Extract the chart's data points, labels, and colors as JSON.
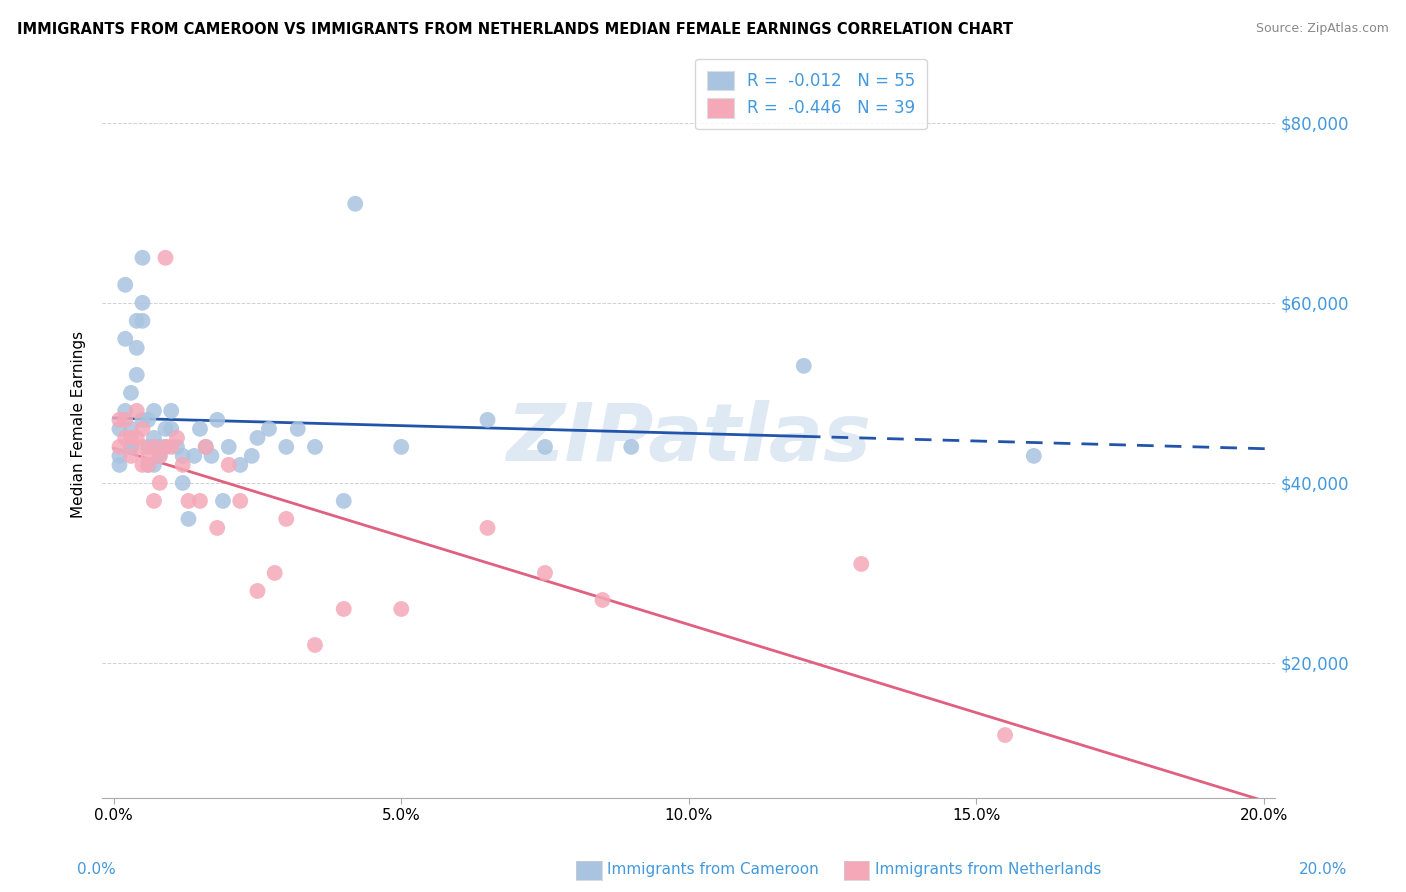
{
  "title": "IMMIGRANTS FROM CAMEROON VS IMMIGRANTS FROM NETHERLANDS MEDIAN FEMALE EARNINGS CORRELATION CHART",
  "source": "Source: ZipAtlas.com",
  "ylabel": "Median Female Earnings",
  "x_ticklabels": [
    "0.0%",
    "5.0%",
    "10.0%",
    "15.0%",
    "20.0%"
  ],
  "x_ticks": [
    0.0,
    0.05,
    0.1,
    0.15,
    0.2
  ],
  "y_ticks": [
    20000,
    40000,
    60000,
    80000
  ],
  "y_ticklabels_right": [
    "$20,000",
    "$40,000",
    "$60,000",
    "$80,000"
  ],
  "xlim": [
    -0.002,
    0.202
  ],
  "ylim": [
    5000,
    88000
  ],
  "color_cameroon": "#a8c4e0",
  "color_netherlands": "#f4a8b8",
  "trendline_cameroon_color": "#2255aa",
  "trendline_netherlands_color": "#e06080",
  "watermark": "ZIPatlas",
  "background_color": "#ffffff",
  "grid_color": "#cccccc",
  "right_axis_color": "#4499dd",
  "cameroon_x": [
    0.001,
    0.001,
    0.001,
    0.002,
    0.002,
    0.002,
    0.003,
    0.003,
    0.003,
    0.003,
    0.004,
    0.004,
    0.004,
    0.005,
    0.005,
    0.005,
    0.005,
    0.006,
    0.006,
    0.006,
    0.007,
    0.007,
    0.007,
    0.008,
    0.008,
    0.009,
    0.009,
    0.01,
    0.01,
    0.011,
    0.012,
    0.012,
    0.013,
    0.014,
    0.015,
    0.016,
    0.017,
    0.018,
    0.019,
    0.02,
    0.022,
    0.024,
    0.025,
    0.027,
    0.03,
    0.032,
    0.035,
    0.04,
    0.042,
    0.05,
    0.065,
    0.075,
    0.09,
    0.12,
    0.16
  ],
  "cameroon_y": [
    43000,
    46000,
    42000,
    56000,
    62000,
    48000,
    44000,
    46000,
    50000,
    44000,
    55000,
    58000,
    52000,
    47000,
    60000,
    65000,
    58000,
    42000,
    44000,
    47000,
    48000,
    45000,
    42000,
    44000,
    43000,
    46000,
    44000,
    46000,
    48000,
    44000,
    40000,
    43000,
    36000,
    43000,
    46000,
    44000,
    43000,
    47000,
    38000,
    44000,
    42000,
    43000,
    45000,
    46000,
    44000,
    46000,
    44000,
    38000,
    71000,
    44000,
    47000,
    44000,
    44000,
    53000,
    43000
  ],
  "netherlands_x": [
    0.001,
    0.001,
    0.002,
    0.002,
    0.003,
    0.003,
    0.004,
    0.004,
    0.005,
    0.005,
    0.005,
    0.006,
    0.006,
    0.007,
    0.007,
    0.008,
    0.008,
    0.009,
    0.009,
    0.01,
    0.011,
    0.012,
    0.013,
    0.015,
    0.016,
    0.018,
    0.02,
    0.022,
    0.025,
    0.028,
    0.03,
    0.035,
    0.04,
    0.05,
    0.065,
    0.075,
    0.085,
    0.13,
    0.155
  ],
  "netherlands_y": [
    47000,
    44000,
    47000,
    45000,
    45000,
    43000,
    48000,
    45000,
    42000,
    44000,
    46000,
    43000,
    42000,
    44000,
    38000,
    40000,
    43000,
    44000,
    65000,
    44000,
    45000,
    42000,
    38000,
    38000,
    44000,
    35000,
    42000,
    38000,
    28000,
    30000,
    36000,
    22000,
    26000,
    26000,
    35000,
    30000,
    27000,
    31000,
    12000
  ],
  "legend_label_cam": "R =  -0.012   N = 55",
  "legend_label_neth": "R =  -0.446   N = 39",
  "bottom_label_cam": "Immigrants from Cameroon",
  "bottom_label_neth": "Immigrants from Netherlands"
}
